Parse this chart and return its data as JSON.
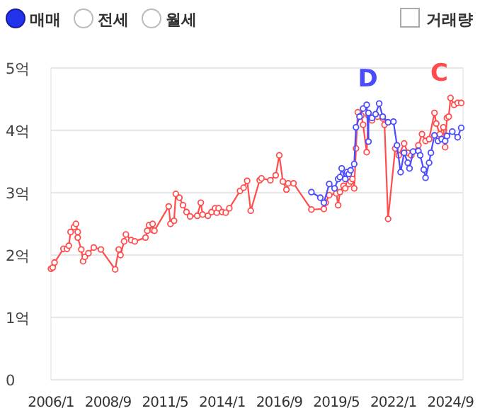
{
  "chart_data": {
    "type": "line",
    "annotations": [
      "매매",
      "전세",
      "월세",
      "거래량"
    ],
    "xlim": [
      "2006-01",
      "2025-04"
    ],
    "xticks": [
      {
        "value": "2006-01",
        "label": "2006/1"
      },
      {
        "value": "2008-09",
        "label": "2008/9"
      },
      {
        "value": "2011-05",
        "label": "2011/5"
      },
      {
        "value": "2014-01",
        "label": "2014/1"
      },
      {
        "value": "2016-09",
        "label": "2016/9"
      },
      {
        "value": "2019-05",
        "label": "2019/5"
      },
      {
        "value": "2022-01",
        "label": "2022/1"
      },
      {
        "value": "2024-09",
        "label": "2024/9"
      }
    ],
    "ylim": [
      0,
      5
    ],
    "yticks": [
      0,
      {
        "value": 1,
        "label": "1억"
      },
      {
        "value": 2,
        "label": "2억"
      },
      {
        "value": 3,
        "label": "3억"
      },
      {
        "value": 4,
        "label": "4억"
      },
      {
        "value": 5,
        "label": "5억"
      }
    ],
    "grid": "y",
    "marker": "circle",
    "line_style": "solid",
    "series": [
      {
        "name": "C",
        "color": "#ff4d4d",
        "x": [
          "2006-01",
          "2006-02",
          "2006-03",
          "2006-08",
          "2006-10",
          "2006-11",
          "2006-12",
          "2007-02",
          "2007-03",
          "2007-04",
          "2007-04",
          "2007-06",
          "2007-07",
          "2007-08",
          "2007-10",
          "2008-01",
          "2008-05",
          "2009-01",
          "2009-03",
          "2009-04",
          "2009-06",
          "2009-07",
          "2009-10",
          "2009-12",
          "2010-06",
          "2010-07",
          "2010-08",
          "2010-10",
          "2010-10",
          "2010-11",
          "2011-07",
          "2011-08",
          "2011-10",
          "2011-11",
          "2012-01",
          "2012-03",
          "2012-05",
          "2012-07",
          "2012-11",
          "2013-01",
          "2013-02",
          "2013-05",
          "2013-07",
          "2013-09",
          "2013-10",
          "2013-11",
          "2014-01",
          "2014-03",
          "2014-05",
          "2014-11",
          "2015-01",
          "2015-03",
          "2015-05",
          "2015-10",
          "2015-11",
          "2016-04",
          "2016-07",
          "2016-09",
          "2016-11",
          "2017-01",
          "2017-02",
          "2017-05",
          "2018-03",
          "2018-10",
          "2018-11",
          "2019-01",
          "2019-05",
          "2019-06",
          "2019-07",
          "2019-09",
          "2019-10",
          "2019-12",
          "2020-01",
          "2020-02",
          "2020-03",
          "2020-04",
          "2020-05",
          "2020-07",
          "2020-08",
          "2020-10",
          "2020-11",
          "2021-01",
          "2021-04",
          "2021-07",
          "2021-08",
          "2021-10",
          "2022-02",
          "2022-04",
          "2022-07",
          "2022-09",
          "2022-11",
          "2023-03",
          "2023-05",
          "2023-07",
          "2023-09",
          "2023-12",
          "2024-01",
          "2024-03",
          "2024-05",
          "2024-06",
          "2024-07",
          "2024-08",
          "2024-09",
          "2024-11",
          "2025-01",
          "2025-03"
        ],
        "values": [
          1.78,
          1.8,
          1.88,
          2.1,
          2.1,
          2.15,
          2.37,
          2.45,
          2.5,
          2.37,
          2.28,
          2.09,
          1.9,
          1.97,
          2.03,
          2.12,
          2.09,
          1.77,
          2.09,
          2.0,
          2.22,
          2.33,
          2.24,
          2.22,
          2.28,
          2.39,
          2.48,
          2.5,
          2.4,
          2.39,
          2.78,
          2.5,
          2.55,
          2.98,
          2.92,
          2.8,
          2.69,
          2.62,
          2.63,
          2.84,
          2.65,
          2.63,
          2.69,
          2.75,
          2.68,
          2.75,
          2.69,
          2.68,
          2.75,
          3.03,
          3.08,
          3.19,
          2.71,
          3.2,
          3.23,
          3.2,
          3.28,
          3.6,
          3.18,
          3.05,
          3.15,
          3.15,
          2.73,
          2.74,
          2.84,
          2.96,
          2.99,
          2.8,
          3.01,
          3.11,
          3.07,
          3.14,
          3.18,
          3.22,
          3.07,
          3.71,
          4.29,
          4.24,
          4.09,
          3.65,
          4.24,
          4.16,
          4.22,
          4.19,
          4.09,
          2.58,
          3.71,
          3.6,
          3.79,
          3.64,
          3.6,
          3.76,
          3.94,
          3.83,
          3.86,
          4.28,
          4.11,
          3.94,
          4.05,
          3.73,
          4.2,
          4.22,
          4.52,
          4.41,
          4.44,
          4.44
        ]
      },
      {
        "name": "D",
        "color": "#4a4aff",
        "x": [
          "2018-03",
          "2018-08",
          "2018-10",
          "2019-01",
          "2019-04",
          "2019-06",
          "2019-07",
          "2019-08",
          "2019-10",
          "2019-11",
          "2019-12",
          "2020-01",
          "2020-03",
          "2020-04",
          "2020-06",
          "2020-08",
          "2020-10",
          "2020-11",
          "2020-11",
          "2021-01",
          "2021-03",
          "2021-05",
          "2021-07",
          "2021-10",
          "2022-01",
          "2022-03",
          "2022-05",
          "2022-07",
          "2022-09",
          "2022-10",
          "2022-12",
          "2023-03",
          "2023-04",
          "2023-06",
          "2023-07",
          "2023-09",
          "2023-10",
          "2023-12",
          "2024-02",
          "2024-04",
          "2024-06",
          "2024-07",
          "2024-10",
          "2025-01",
          "2025-03"
        ],
        "values": [
          3.01,
          2.92,
          2.84,
          3.14,
          3.07,
          3.22,
          3.25,
          3.39,
          3.22,
          3.33,
          3.3,
          3.36,
          3.46,
          4.05,
          4.22,
          4.35,
          4.41,
          3.82,
          4.28,
          4.2,
          4.26,
          4.43,
          4.22,
          4.13,
          4.14,
          3.76,
          3.33,
          3.64,
          3.48,
          3.39,
          3.66,
          3.67,
          3.6,
          3.37,
          3.24,
          3.48,
          3.64,
          3.92,
          3.83,
          3.86,
          3.83,
          3.91,
          3.98,
          3.89,
          4.04
        ]
      }
    ]
  }
}
